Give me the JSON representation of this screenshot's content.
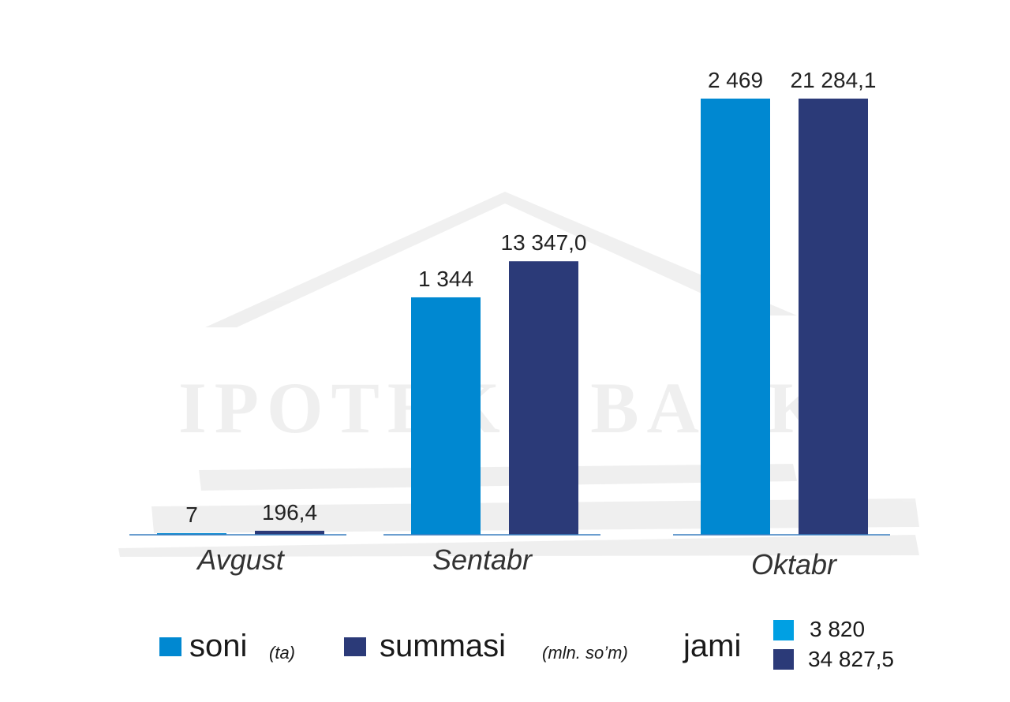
{
  "chart_data": {
    "type": "bar",
    "categories": [
      "Avgust",
      "Sentabr",
      "Oktabr"
    ],
    "series": [
      {
        "name": "soni",
        "unit": "(ta)",
        "values": [
          7,
          1344,
          2469
        ],
        "labels": [
          "7",
          "1 344",
          "2 469"
        ],
        "color": "#0088d1"
      },
      {
        "name": "summasi",
        "unit": "(mln. so’m)",
        "values": [
          196.4,
          13347.0,
          21284.1
        ],
        "labels": [
          "196,4",
          "13 347,0",
          "21 284,1"
        ],
        "color": "#2b3a78"
      }
    ],
    "legend_position": "bottom",
    "grid": false
  },
  "totals": {
    "label": "jami",
    "items": [
      {
        "value": "3 820",
        "color": "#00a0e3"
      },
      {
        "value": "34 827,5",
        "color": "#2b3a78"
      }
    ]
  },
  "watermark": {
    "text": "IPOTEKA BANK"
  }
}
